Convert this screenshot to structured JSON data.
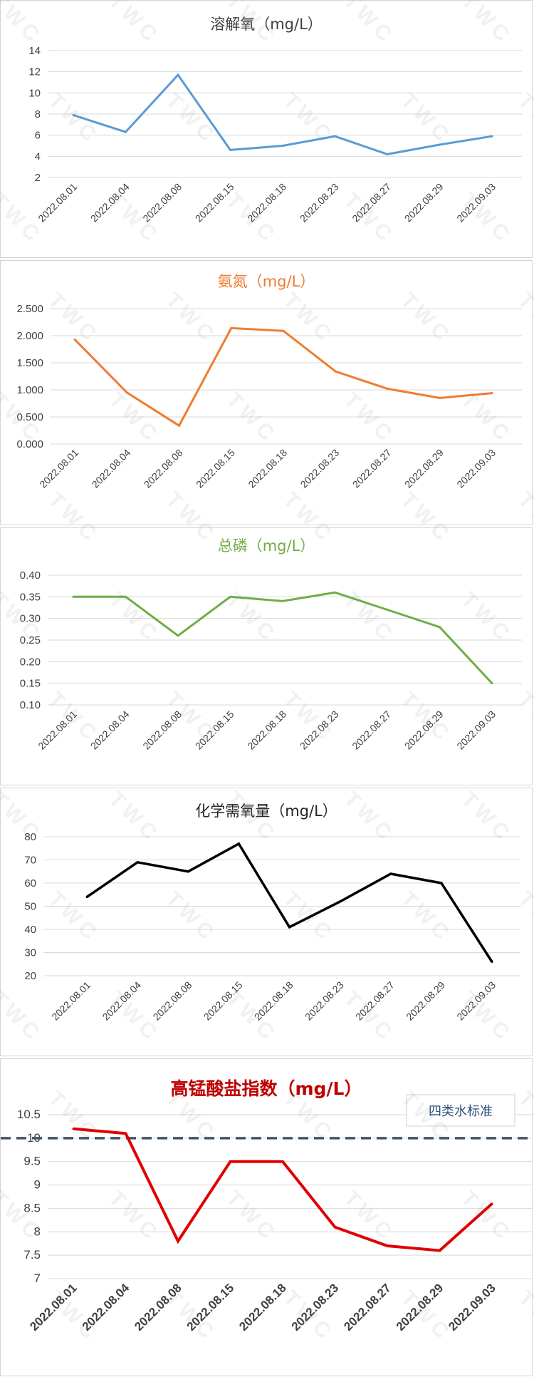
{
  "watermark_text": "TWC",
  "charts": [
    {
      "type": "line",
      "title": "溶解氧（mg/L）",
      "title_color": "#404040",
      "line_color": "#5b9bd5",
      "categories": [
        "2022.08.01",
        "2022.08.04",
        "2022.08.08",
        "2022.08.15",
        "2022.08.18",
        "2022.08.23",
        "2022.08.27",
        "2022.08.29",
        "2022.09.03"
      ],
      "values": [
        7.9,
        6.3,
        11.7,
        4.6,
        5.0,
        5.9,
        4.2,
        5.1,
        5.9
      ],
      "ylim": [
        2,
        14
      ],
      "yticks": [
        "2",
        "4",
        "6",
        "8",
        "10",
        "12",
        "14"
      ],
      "grid": true
    },
    {
      "type": "line",
      "title": "氨氮（mg/L）",
      "title_color": "#ed7d31",
      "line_color": "#ed7d31",
      "categories": [
        "2022.08.01",
        "2022.08.04",
        "2022.08.08",
        "2022.08.15",
        "2022.08.18",
        "2022.08.23",
        "2022.08.27",
        "2022.08.29",
        "2022.09.03"
      ],
      "values": [
        1.93,
        0.95,
        0.34,
        2.14,
        2.09,
        1.34,
        1.02,
        0.85,
        0.94
      ],
      "ylim": [
        0,
        2.5
      ],
      "yticks": [
        "0.000",
        "0.500",
        "1.000",
        "1.500",
        "2.000",
        "2.500"
      ],
      "grid": true
    },
    {
      "type": "line",
      "title": "总磷（mg/L）",
      "title_color": "#70ad47",
      "line_color": "#70ad47",
      "categories": [
        "2022.08.01",
        "2022.08.04",
        "2022.08.08",
        "2022.08.15",
        "2022.08.18",
        "2022.08.23",
        "2022.08.27",
        "2022.08.29",
        "2022.09.03"
      ],
      "values": [
        0.35,
        0.35,
        0.26,
        0.35,
        0.34,
        0.36,
        0.32,
        0.28,
        0.15
      ],
      "ylim": [
        0.1,
        0.4
      ],
      "yticks": [
        "0.10",
        "0.15",
        "0.20",
        "0.25",
        "0.30",
        "0.35",
        "0.40"
      ],
      "grid": true
    },
    {
      "type": "line",
      "title": "化学需氧量（mg/L）",
      "title_color": "#262626",
      "line_color": "#000000",
      "categories": [
        "2022.08.01",
        "2022.08.04",
        "2022.08.08",
        "2022.08.15",
        "2022.08.18",
        "2022.08.23",
        "2022.08.27",
        "2022.08.29",
        "2022.09.03"
      ],
      "values": [
        54,
        69,
        65,
        77,
        41,
        52,
        64,
        60,
        26
      ],
      "ylim": [
        20,
        80
      ],
      "yticks": [
        "20",
        "30",
        "40",
        "50",
        "60",
        "70",
        "80"
      ],
      "grid": true
    },
    {
      "type": "line",
      "title": "高锰酸盐指数（mg/L）",
      "title_color": "#c00000",
      "line_color": "#e00000",
      "categories": [
        "2022.08.01",
        "2022.08.04",
        "2022.08.08",
        "2022.08.15",
        "2022.08.18",
        "2022.08.23",
        "2022.08.27",
        "2022.08.29",
        "2022.09.03"
      ],
      "values": [
        10.2,
        10.1,
        7.8,
        9.5,
        9.5,
        8.1,
        7.7,
        7.6,
        8.6
      ],
      "ylim": [
        7,
        10.5
      ],
      "yticks": [
        "7",
        "7.5",
        "8",
        "8.5",
        "9",
        "9.5",
        "10",
        "10.5"
      ],
      "grid": true,
      "reference_line": {
        "value": 10,
        "color": "#44546a"
      },
      "legend_text": "四类水标准",
      "legend_placement": "top-right"
    }
  ]
}
